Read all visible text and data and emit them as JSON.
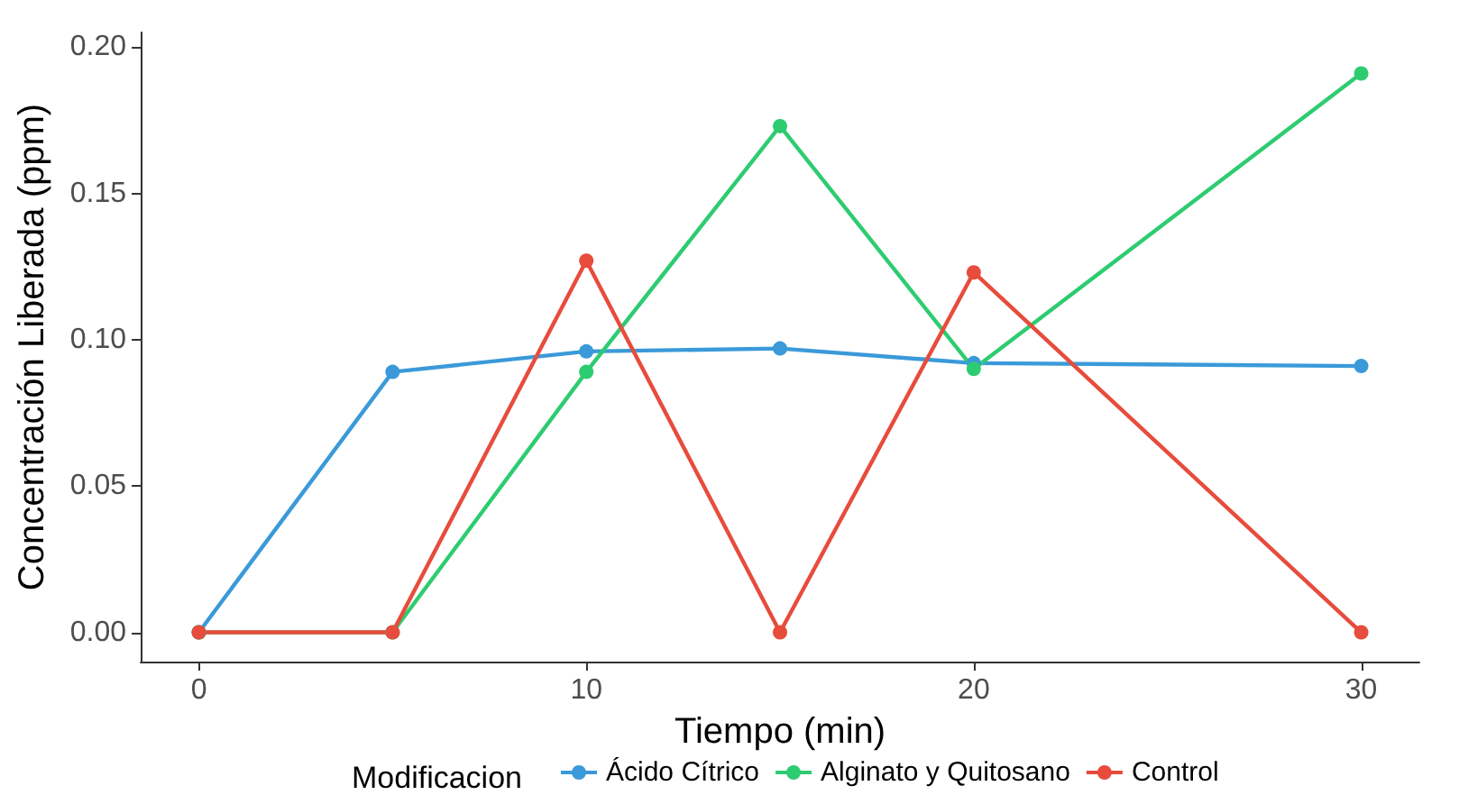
{
  "chart_data": {
    "type": "line",
    "xlabel": "Tiempo (min)",
    "ylabel": "Concentración Liberada (ppm)",
    "legend_title": "Modificacion",
    "x": [
      0,
      5,
      10,
      15,
      20,
      30
    ],
    "series": [
      {
        "name": "Ácido Cítrico",
        "color": "#3a9ad9",
        "values": [
          0,
          0.089,
          0.096,
          0.097,
          0.092,
          0.091
        ]
      },
      {
        "name": "Alginato y Quitosano",
        "color": "#2ecc71",
        "values": [
          0,
          0,
          0.089,
          0.173,
          0.09,
          0.191
        ]
      },
      {
        "name": "Control",
        "color": "#e74c3c",
        "values": [
          0,
          0,
          0.127,
          0,
          0.123,
          0
        ]
      }
    ],
    "xlim": [
      -1.5,
      31.5
    ],
    "xticks": [
      0,
      10,
      20,
      30
    ],
    "ylim": [
      -0.01,
      0.205
    ],
    "yticks": [
      {
        "value": 0,
        "label": "0.00"
      },
      {
        "value": 0.05,
        "label": "0.05"
      },
      {
        "value": 0.1,
        "label": "0.10"
      },
      {
        "value": 0.15,
        "label": "0.15"
      },
      {
        "value": 0.2,
        "label": "0.20"
      }
    ],
    "grid": false,
    "legend": "bottom",
    "marker": "circle",
    "line_style": "solid"
  }
}
